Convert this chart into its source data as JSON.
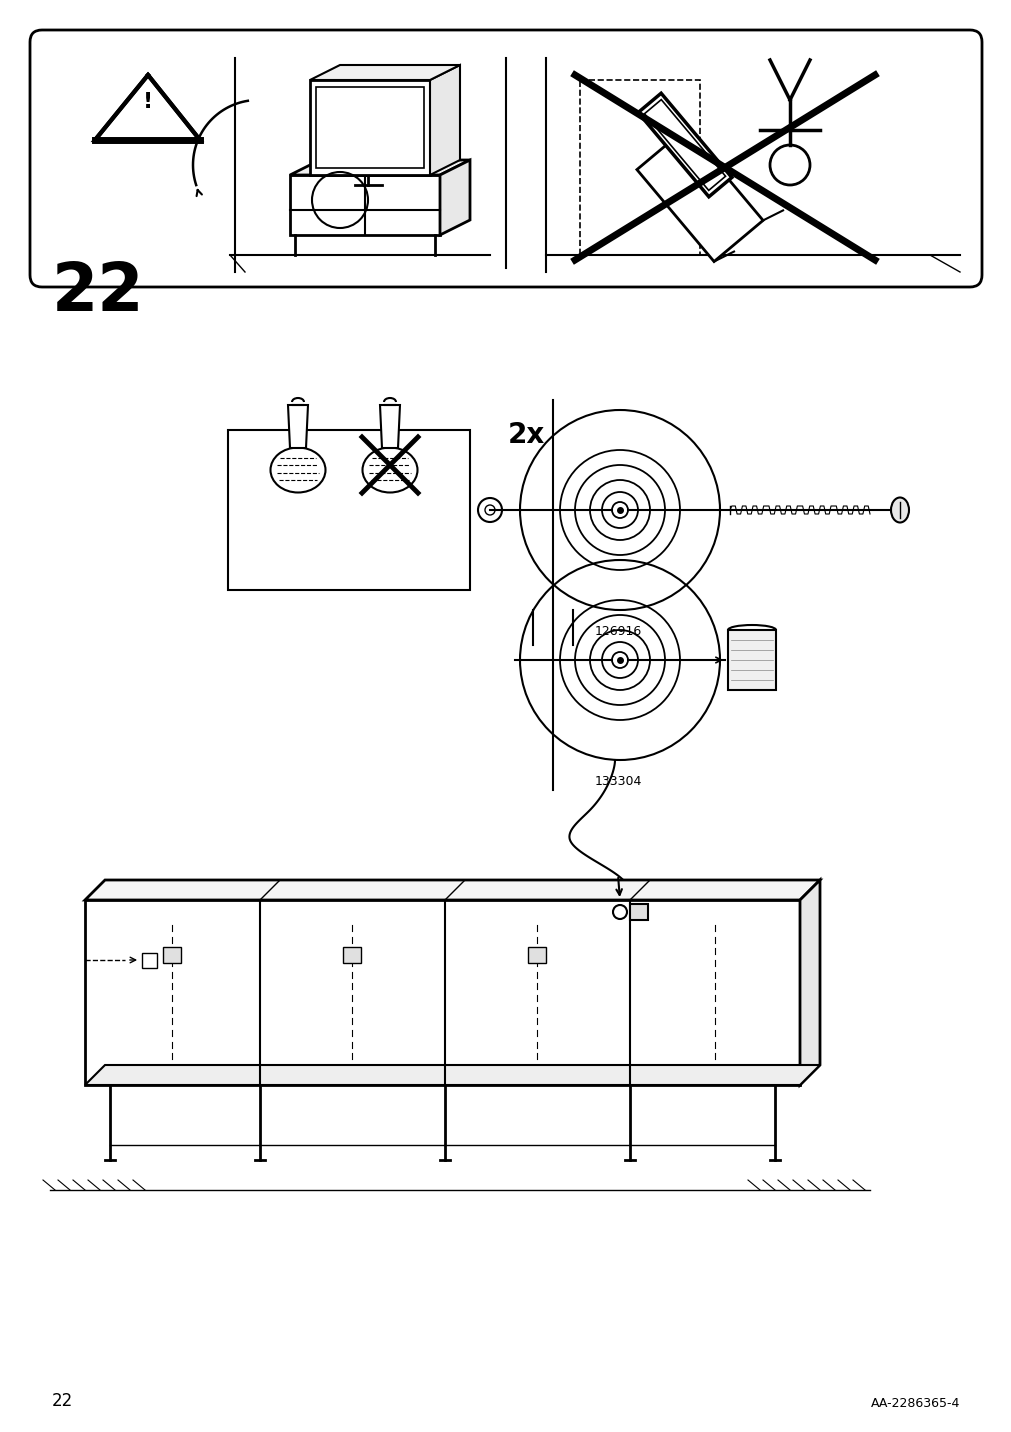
{
  "page_number": "22",
  "footer_text": "AA-2286365-4",
  "part_numbers": [
    "126916",
    "133304"
  ],
  "quantity_text": "2x",
  "bg_color": "#ffffff",
  "line_color": "#000000"
}
